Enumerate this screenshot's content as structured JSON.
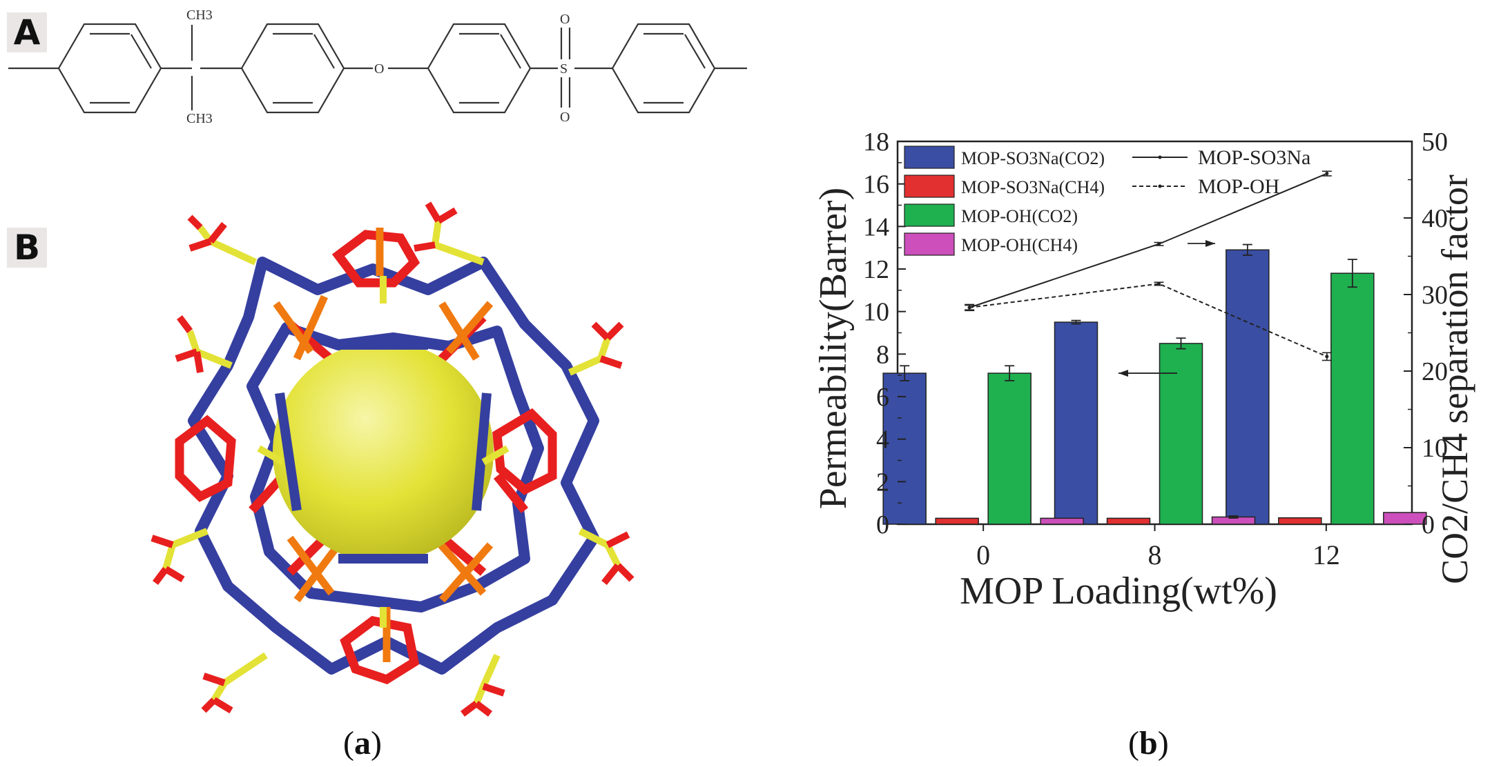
{
  "panel_a": {
    "label_A": "A",
    "label_B": "B",
    "structure_labels": {
      "methyl_top": "CH3",
      "methyl_bottom": "CH3",
      "ether_o": "O",
      "sulfonyl_o_top": "O",
      "sulfonyl_s": "S",
      "sulfonyl_o_bottom": "O"
    },
    "caption": "a"
  },
  "panel_b": {
    "caption": "b"
  },
  "colors": {
    "blue": "#3a4ea3",
    "red": "#e23030",
    "green": "#1fb050",
    "magenta": "#cc4fbb",
    "mol_blue": "#353fa0",
    "mol_red": "#e81f1f",
    "mol_orange": "#f07a10",
    "mol_yellow": "#e3e236",
    "sphere": "#e8e83c"
  },
  "chart_data": {
    "type": "bar",
    "categories": [
      "0",
      "8",
      "12"
    ],
    "xlabel": "MOP Loading(wt%)",
    "ylabel": "Permeability(Barrer)",
    "y2label": "CO2/CH4 separation factor",
    "ylim": [
      0,
      18
    ],
    "yticks": [
      0,
      2,
      4,
      6,
      8,
      10,
      12,
      14,
      16,
      18
    ],
    "y2lim": [
      0,
      50
    ],
    "y2ticks": [
      0,
      10,
      20,
      30,
      40,
      50
    ],
    "legend_position": "top-left",
    "series": [
      {
        "name": "MOP-SO3Na(CO2)",
        "color": "#3a4ea3",
        "values": [
          7.1,
          9.5,
          12.9
        ],
        "errors": [
          0.35,
          0.08,
          0.25
        ]
      },
      {
        "name": "MOP-SO3Na(CH4)",
        "color": "#e23030",
        "values": [
          0.28,
          0.28,
          0.3
        ],
        "errors": [
          0,
          0,
          0
        ]
      },
      {
        "name": "MOP-OH(CO2)",
        "color": "#1fb050",
        "values": [
          7.1,
          8.5,
          11.8
        ],
        "errors": [
          0.35,
          0.25,
          0.65
        ]
      },
      {
        "name": "MOP-OH(CH4)",
        "color": "#cc4fbb",
        "values": [
          0.28,
          0.34,
          0.55
        ],
        "errors": [
          0,
          0.05,
          0
        ]
      }
    ],
    "lines": [
      {
        "name": "MOP-SO3Na",
        "axis": "right",
        "style": "solid",
        "values": [
          28.3,
          36.6,
          45.8
        ],
        "errors": [
          0.4,
          0.2,
          0.3
        ]
      },
      {
        "name": "MOP-OH",
        "axis": "right",
        "style": "dashed",
        "values": [
          28.3,
          31.4,
          21.9
        ],
        "errors": [
          0.3,
          0.2,
          0.5
        ]
      }
    ]
  }
}
